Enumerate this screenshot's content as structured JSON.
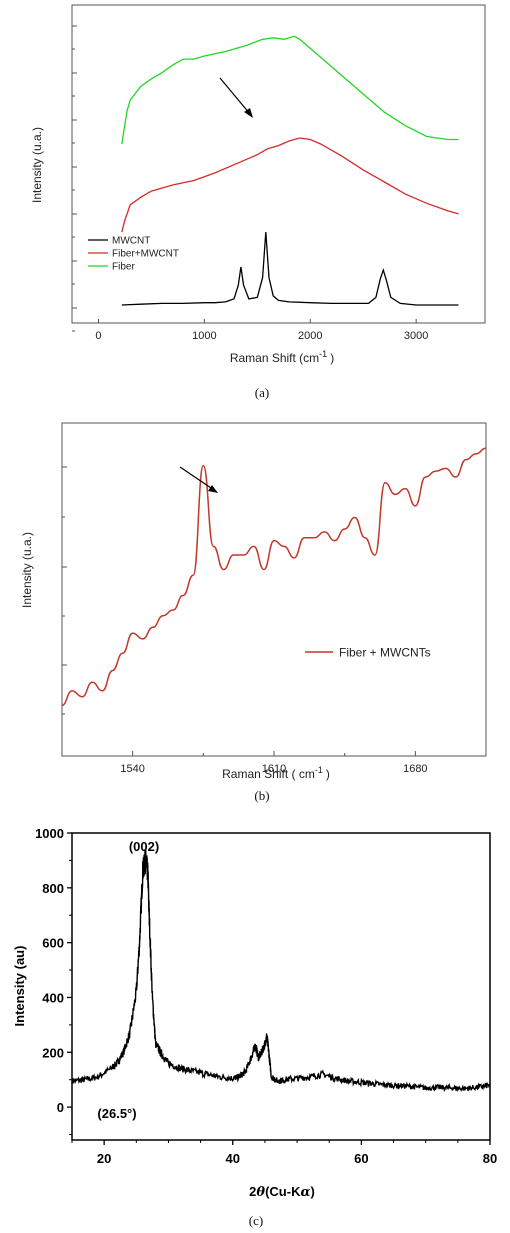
{
  "chart_data": [
    {
      "type": "line",
      "caption": "(a)",
      "xlabel": "Raman Shift (cm",
      "xlabel_sup": "-1",
      "xlabel_tail": ")",
      "ylabel": "Intensity (u.a.)",
      "xlim": [
        -250,
        3650
      ],
      "x_ticks": [
        0,
        1000,
        2000,
        3000
      ],
      "legend_position": "bottom-left",
      "series": [
        {
          "name": "MWCNT",
          "color": "#000000",
          "x": [
            220,
            400,
            600,
            800,
            1000,
            1100,
            1200,
            1280,
            1320,
            1345,
            1370,
            1420,
            1500,
            1550,
            1580,
            1610,
            1650,
            1700,
            1800,
            2000,
            2200,
            2400,
            2550,
            2620,
            2660,
            2690,
            2720,
            2760,
            2850,
            3000,
            3200,
            3400
          ],
          "y": [
            0.02,
            0.025,
            0.03,
            0.03,
            0.035,
            0.035,
            0.04,
            0.06,
            0.15,
            0.27,
            0.15,
            0.06,
            0.07,
            0.2,
            0.5,
            0.2,
            0.08,
            0.05,
            0.04,
            0.035,
            0.03,
            0.03,
            0.03,
            0.07,
            0.19,
            0.25,
            0.18,
            0.07,
            0.03,
            0.02,
            0.02,
            0.02
          ]
        },
        {
          "name": "Fiber+MWCNT",
          "color": "#d42a2a",
          "x": [
            220,
            250,
            300,
            400,
            500,
            700,
            900,
            1100,
            1300,
            1500,
            1600,
            1700,
            1800,
            1900,
            2000,
            2100,
            2300,
            2500,
            2700,
            2900,
            3100,
            3300,
            3400
          ],
          "y": [
            0.5,
            0.58,
            0.68,
            0.73,
            0.77,
            0.81,
            0.84,
            0.89,
            0.95,
            1.01,
            1.05,
            1.07,
            1.1,
            1.12,
            1.11,
            1.08,
            1.0,
            0.91,
            0.83,
            0.75,
            0.69,
            0.64,
            0.62
          ]
        },
        {
          "name": "Fiber",
          "color": "#22d622",
          "x": [
            220,
            240,
            270,
            300,
            400,
            500,
            600,
            700,
            800,
            900,
            1000,
            1200,
            1400,
            1550,
            1650,
            1750,
            1850,
            1900,
            2000,
            2100,
            2300,
            2500,
            2700,
            2900,
            3100,
            3300,
            3400
          ],
          "y": [
            1.08,
            1.17,
            1.3,
            1.37,
            1.46,
            1.51,
            1.55,
            1.6,
            1.64,
            1.64,
            1.66,
            1.69,
            1.73,
            1.77,
            1.78,
            1.77,
            1.79,
            1.77,
            1.71,
            1.65,
            1.53,
            1.41,
            1.29,
            1.2,
            1.13,
            1.11,
            1.11
          ]
        }
      ]
    },
    {
      "type": "line",
      "caption": "(b)",
      "xlabel": "Raman Shift ( cm",
      "xlabel_sup": "-1",
      "xlabel_tail": ")",
      "ylabel": "Intensity (u.a.)",
      "xlim": [
        1505,
        1715
      ],
      "x_ticks": [
        1540,
        1610,
        1680
      ],
      "legend_position": "right",
      "series": [
        {
          "name": "Fiber + MWCNTs",
          "color": "#c0392b",
          "x": [
            1505,
            1510,
            1515,
            1520,
            1525,
            1530,
            1535,
            1540,
            1545,
            1550,
            1555,
            1560,
            1565,
            1570,
            1575,
            1580,
            1585,
            1590,
            1595,
            1600,
            1605,
            1610,
            1615,
            1620,
            1625,
            1630,
            1635,
            1640,
            1645,
            1650,
            1655,
            1660,
            1665,
            1670,
            1675,
            1680,
            1685,
            1690,
            1695,
            1700,
            1705,
            1710,
            1715
          ],
          "y": [
            0.03,
            0.08,
            0.06,
            0.11,
            0.08,
            0.15,
            0.21,
            0.28,
            0.26,
            0.3,
            0.34,
            0.36,
            0.41,
            0.48,
            0.86,
            0.58,
            0.5,
            0.55,
            0.55,
            0.58,
            0.5,
            0.6,
            0.58,
            0.54,
            0.61,
            0.61,
            0.63,
            0.6,
            0.64,
            0.68,
            0.61,
            0.55,
            0.8,
            0.76,
            0.78,
            0.72,
            0.82,
            0.84,
            0.85,
            0.82,
            0.88,
            0.9,
            0.92
          ]
        }
      ]
    },
    {
      "type": "line",
      "caption": "(c)",
      "xlabel": "2",
      "xlabel_theta": "θ",
      "xlabel_tail": "(Cu-K",
      "xlabel_alpha": "α",
      "xlabel_close": ")",
      "ylabel": "Intensity (au)",
      "xlim": [
        15,
        80
      ],
      "ylim": [
        -120,
        1000
      ],
      "x_ticks": [
        20,
        40,
        60,
        80
      ],
      "y_ticks": [
        0,
        200,
        400,
        600,
        800,
        1000
      ],
      "annotations": [
        {
          "text": "(002)",
          "x": 26.2,
          "y": 935
        },
        {
          "text": "(26.5°)",
          "x": 22.0,
          "y": -40
        }
      ],
      "series": [
        {
          "name": "",
          "color": "#000000",
          "x": [
            15,
            17,
            19,
            21,
            22,
            23,
            24,
            25,
            25.5,
            26,
            26.3,
            26.5,
            26.8,
            27,
            27.5,
            28,
            29,
            30,
            32,
            34,
            36,
            38,
            40,
            41,
            42,
            43,
            43.5,
            44,
            44.5,
            45,
            45.3,
            45.6,
            46,
            47,
            48,
            50,
            52,
            54,
            56,
            58,
            60,
            62,
            64,
            66,
            68,
            70,
            72,
            74,
            76,
            78,
            80
          ],
          "y": [
            95,
            100,
            110,
            140,
            160,
            200,
            270,
            420,
            600,
            860,
            890,
            900,
            850,
            700,
            400,
            230,
            190,
            160,
            140,
            130,
            120,
            110,
            105,
            110,
            130,
            190,
            225,
            180,
            200,
            230,
            260,
            200,
            110,
            95,
            100,
            105,
            110,
            120,
            105,
            95,
            90,
            85,
            80,
            78,
            75,
            70,
            72,
            70,
            68,
            72,
            80
          ]
        }
      ]
    }
  ]
}
